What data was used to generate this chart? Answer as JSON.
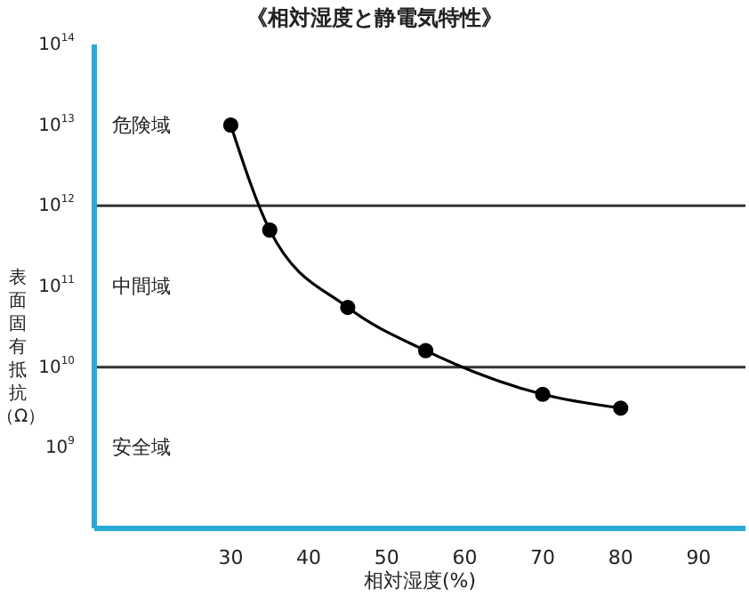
{
  "chart_data": {
    "type": "line",
    "title": "《相対湿度と静電気特性》",
    "xlabel": "相対湿度(%)",
    "ylabel": "表面固有抵抗（Ω）",
    "x": [
      30,
      35,
      45,
      55,
      70,
      80
    ],
    "series": [
      {
        "color": "#000000",
        "values": [
          10000000000000.0,
          500000000000.0,
          55000000000.0,
          16000000000.0,
          4600000000.0,
          3100000000.0
        ]
      }
    ],
    "xlim": [
      12.5,
      96
    ],
    "xticks": [
      30,
      40,
      50,
      60,
      70,
      80,
      90
    ],
    "log": "y",
    "ylim": [
      100000000.0,
      100000000000000.0
    ],
    "yticks": [
      {
        "value": 1000000000.0,
        "label": "10$^{9}$"
      },
      {
        "value": 10000000000.0,
        "label": "10$^{10}$"
      },
      {
        "value": 100000000000.0,
        "label": "10$^{11}$"
      },
      {
        "value": 1000000000000.0,
        "label": "10$^{12}$"
      },
      {
        "value": 10000000000000.0,
        "label": "10$^{13}$"
      },
      {
        "value": 100000000000000.0,
        "label": "10$^{14}$"
      }
    ],
    "ref_lines": [
      {
        "axis": "y",
        "value": 1000000000000.0,
        "color": "#333333"
      },
      {
        "axis": "y",
        "value": 10000000000.0,
        "color": "#333333"
      }
    ],
    "annotations": [
      "危険域",
      "中間域",
      "安全域"
    ],
    "marker": "circle",
    "line_style": "solid",
    "grid": false
  }
}
